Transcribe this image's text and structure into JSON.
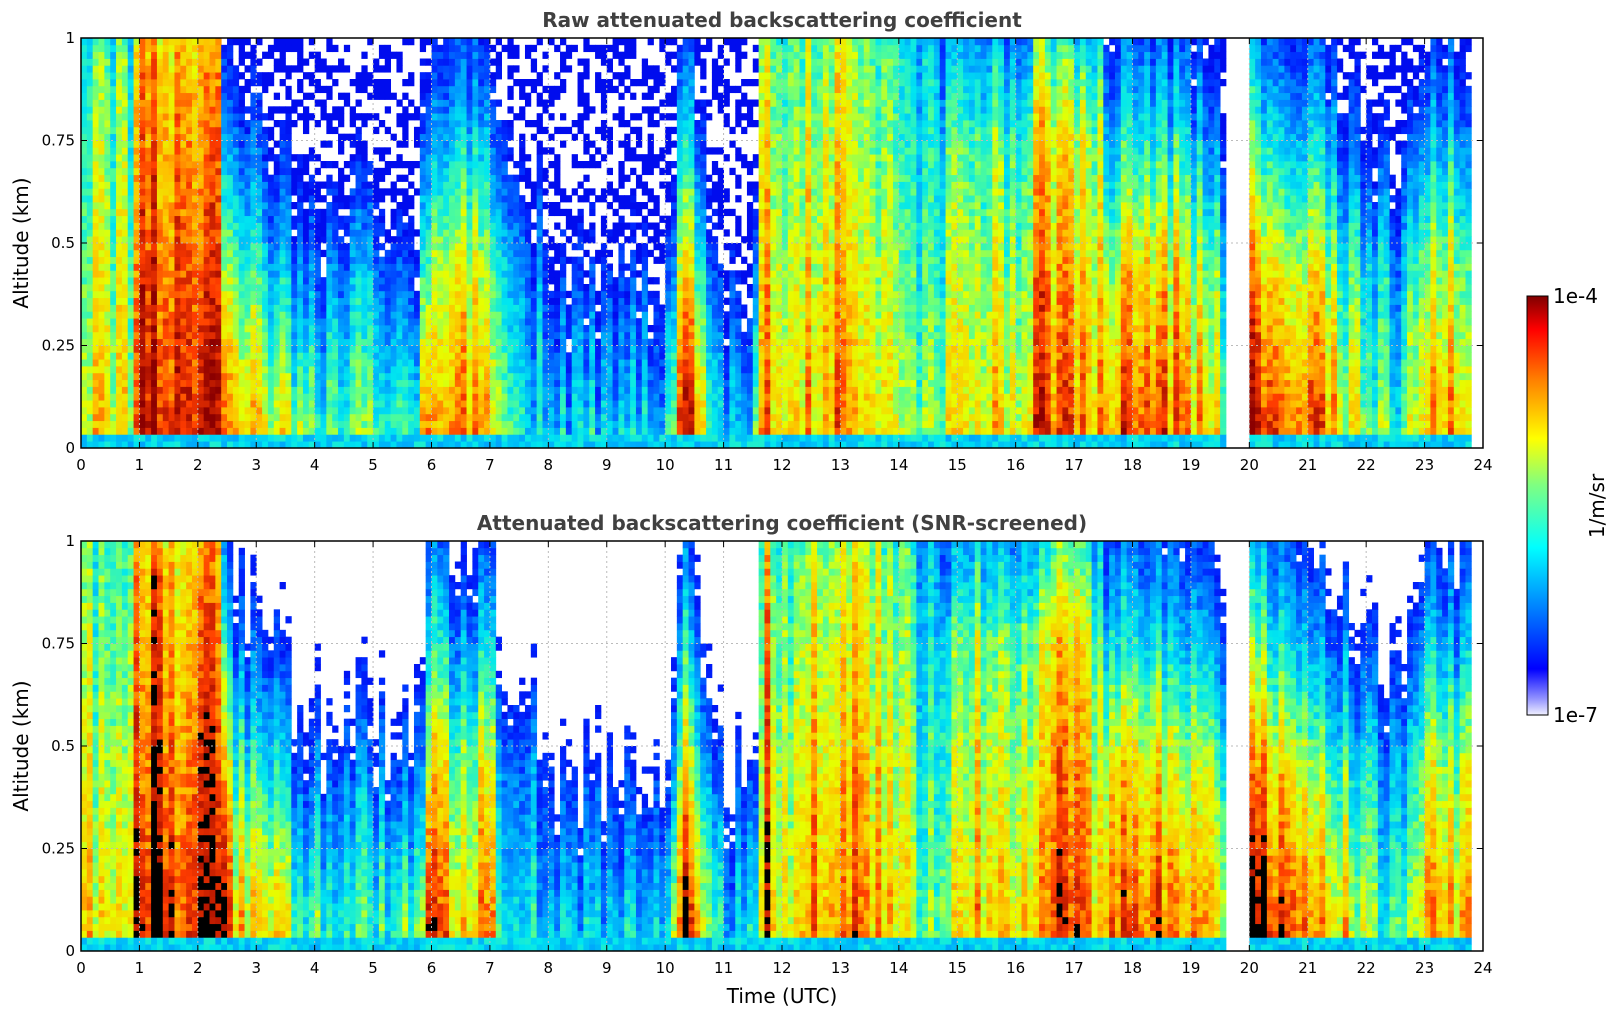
{
  "chart_data": [
    {
      "type": "heatmap",
      "title": "Raw attenuated backscattering coefficient",
      "xlabel": "",
      "ylabel": "Altitude (km)",
      "xlim": [
        0,
        24
      ],
      "ylim": [
        0,
        1
      ],
      "x_ticks": [
        "0",
        "1",
        "2",
        "3",
        "4",
        "5",
        "6",
        "7",
        "8",
        "9",
        "10",
        "11",
        "12",
        "13",
        "14",
        "15",
        "16",
        "17",
        "18",
        "19",
        "20",
        "21",
        "22",
        "23",
        "24"
      ],
      "y_ticks": [
        "0",
        "0.25",
        "0.5",
        "0.75",
        "1"
      ],
      "grid": true,
      "colorscale": "jet",
      "no_data_color": "#ffffff"
    },
    {
      "type": "heatmap",
      "title": "Attenuated backscattering coefficient (SNR-screened)",
      "xlabel": "Time (UTC)",
      "ylabel": "Altitude (km)",
      "xlim": [
        0,
        24
      ],
      "ylim": [
        0,
        1
      ],
      "x_ticks": [
        "0",
        "1",
        "2",
        "3",
        "4",
        "5",
        "6",
        "7",
        "8",
        "9",
        "10",
        "11",
        "12",
        "13",
        "14",
        "15",
        "16",
        "17",
        "18",
        "19",
        "20",
        "21",
        "22",
        "23",
        "24"
      ],
      "y_ticks": [
        "0",
        "0.25",
        "0.5",
        "0.75",
        "1"
      ],
      "grid": true,
      "colorscale": "jet",
      "saturated_color": "#000000",
      "no_data_color": "#ffffff"
    }
  ],
  "colorbar": {
    "label": "1/m/sr",
    "max_label": "1e-4",
    "min_label": "1e-7",
    "scale": "log",
    "range": [
      1e-07,
      0.0001
    ]
  },
  "colors": {
    "title": "#404040",
    "grid": "#bbbbbb",
    "axis": "#000000"
  }
}
